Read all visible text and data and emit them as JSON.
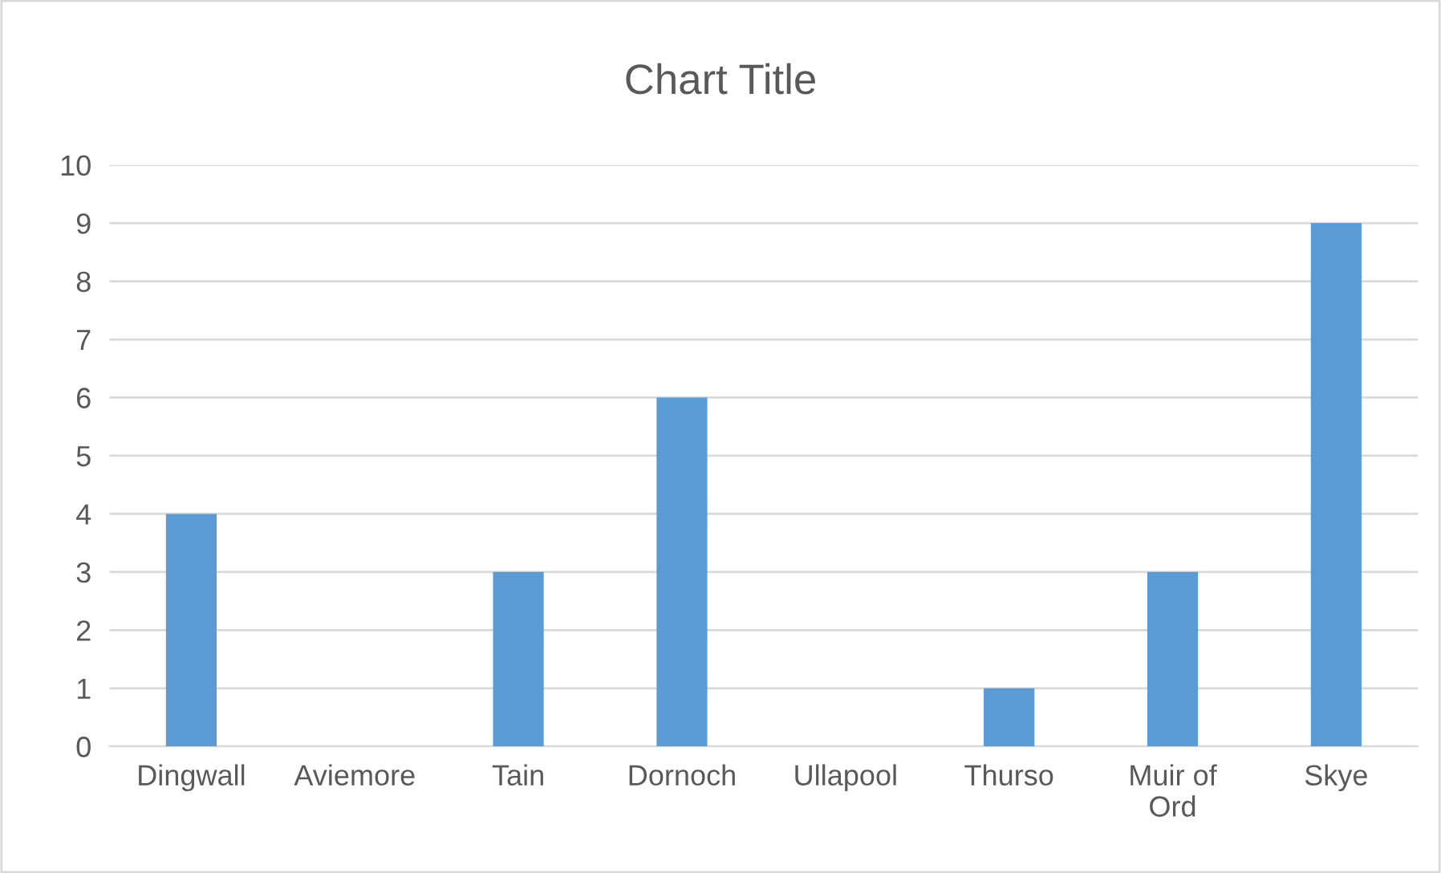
{
  "chart_data": {
    "type": "bar",
    "title": "Chart Title",
    "categories": [
      "Dingwall",
      "Aviemore",
      "Tain",
      "Dornoch",
      "Ullapool",
      "Thurso",
      "Muir of Ord",
      "Skye"
    ],
    "values": [
      4,
      0,
      3,
      6,
      0,
      1,
      3,
      9
    ],
    "color": "#5b9bd5",
    "ylim": [
      0,
      10
    ],
    "yticks": [
      0,
      1,
      2,
      3,
      4,
      5,
      6,
      7,
      8,
      9,
      10
    ],
    "grid": "y",
    "legend": false
  }
}
